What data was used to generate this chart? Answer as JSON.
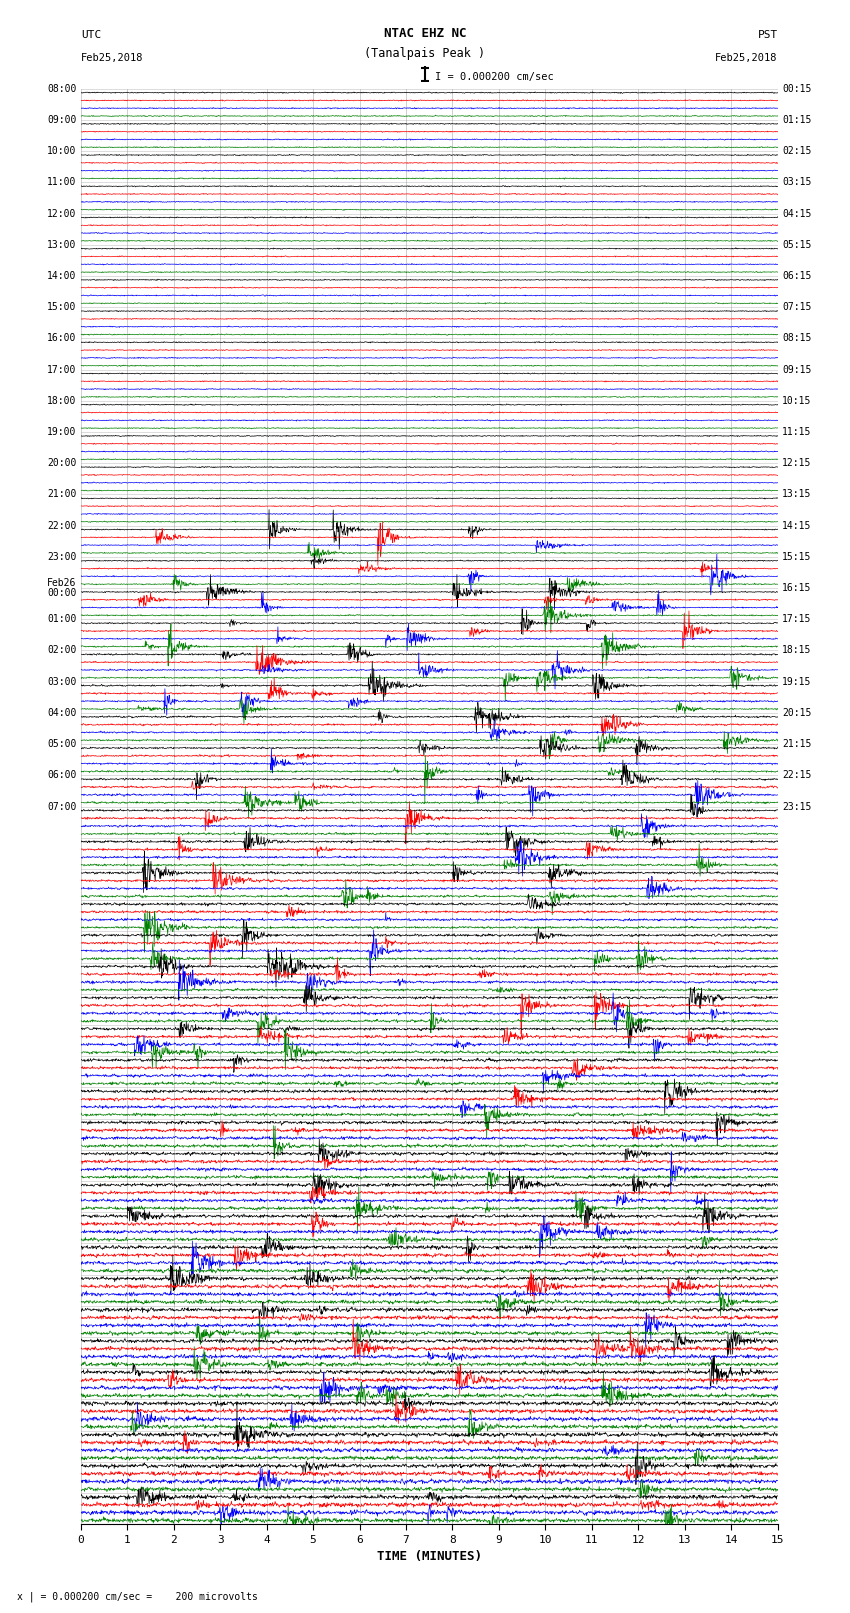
{
  "title_line1": "NTAC EHZ NC",
  "title_line2": "(Tanalpais Peak )",
  "scale_label": "I = 0.000200 cm/sec",
  "bottom_label": "TIME (MINUTES)",
  "bottom_note": "x | = 0.000200 cm/sec =    200 microvolts",
  "colors": [
    "black",
    "red",
    "blue",
    "green"
  ],
  "bg_color": "white",
  "grid_color": "#888888",
  "fig_width": 8.5,
  "fig_height": 16.13,
  "dpi": 100,
  "num_rows": 46,
  "traces_per_row": 4,
  "left_times_utc": [
    "08:00",
    "",
    "",
    "",
    "09:00",
    "",
    "",
    "",
    "10:00",
    "",
    "",
    "",
    "11:00",
    "",
    "",
    "",
    "12:00",
    "",
    "",
    "",
    "13:00",
    "",
    "",
    "",
    "14:00",
    "",
    "",
    "",
    "15:00",
    "",
    "",
    "",
    "16:00",
    "",
    "",
    "",
    "17:00",
    "",
    "",
    "",
    "18:00",
    "",
    "",
    "",
    "19:00",
    "",
    "",
    "",
    "20:00",
    "",
    "",
    "",
    "21:00",
    "",
    "",
    "",
    "22:00",
    "",
    "",
    "",
    "23:00",
    "",
    "",
    "",
    "Feb26\n00:00",
    "",
    "",
    "",
    "01:00",
    "",
    "",
    "",
    "02:00",
    "",
    "",
    "",
    "03:00",
    "",
    "",
    "",
    "04:00",
    "",
    "",
    "",
    "05:00",
    "",
    "",
    "",
    "06:00",
    "",
    "",
    "",
    "07:00",
    ""
  ],
  "right_times_pst": [
    "00:15",
    "",
    "",
    "",
    "01:15",
    "",
    "",
    "",
    "02:15",
    "",
    "",
    "",
    "03:15",
    "",
    "",
    "",
    "04:15",
    "",
    "",
    "",
    "05:15",
    "",
    "",
    "",
    "06:15",
    "",
    "",
    "",
    "07:15",
    "",
    "",
    "",
    "08:15",
    "",
    "",
    "",
    "09:15",
    "",
    "",
    "",
    "10:15",
    "",
    "",
    "",
    "11:15",
    "",
    "",
    "",
    "12:15",
    "",
    "",
    "",
    "13:15",
    "",
    "",
    "",
    "14:15",
    "",
    "",
    "",
    "15:15",
    "",
    "",
    "",
    "16:15",
    "",
    "",
    "",
    "17:15",
    "",
    "",
    "",
    "18:15",
    "",
    "",
    "",
    "19:15",
    "",
    "",
    "",
    "20:15",
    "",
    "",
    "",
    "21:15",
    "",
    "",
    "",
    "22:15",
    "",
    "",
    "",
    "23:15",
    ""
  ],
  "noise_seed": 42,
  "noise_amplitude_early": 0.06,
  "noise_amplitude_late": 0.25,
  "transition_row": 14,
  "event_amplitude": 0.8,
  "event_rows": [
    14,
    15,
    16,
    17,
    18,
    19,
    20,
    21,
    22,
    23,
    24,
    25,
    26,
    27,
    28,
    29,
    30,
    31,
    32,
    33,
    34,
    35,
    36,
    37,
    38,
    39,
    40,
    41,
    42,
    43,
    44,
    45
  ]
}
